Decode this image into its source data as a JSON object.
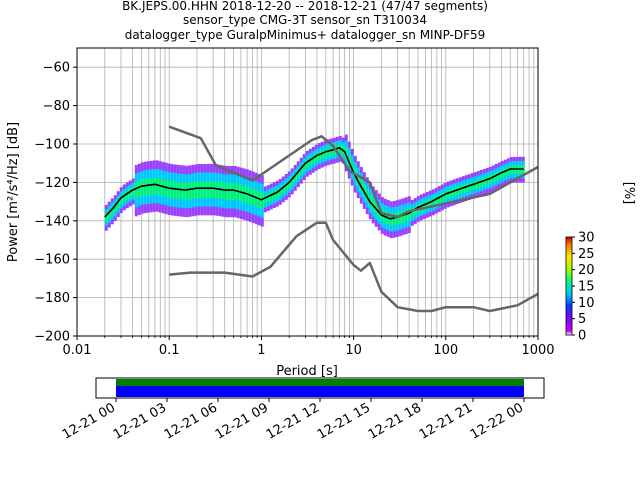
{
  "title_lines": [
    "BK.JEPS.00.HHN   2018-12-20 -- 2018-12-21  (47/47 segments)",
    "sensor_type CMG-3T sensor_sn T310034",
    "datalogger_type GuralpMinimus+ datalogger_sn MINP-DF59"
  ],
  "chart_data": {
    "type": "heatmap",
    "xlabel": "Period [s]",
    "ylabel": "Power [m²/s⁴/Hz] [dB]",
    "xscale": "log",
    "xlim": [
      0.01,
      1000
    ],
    "ylim": [
      -200,
      -50
    ],
    "xticks": [
      0.01,
      0.1,
      1,
      10,
      100,
      1000
    ],
    "xtick_labels": [
      "0.01",
      "0.1",
      "1",
      "10",
      "100",
      "1000"
    ],
    "yticks": [
      -200,
      -180,
      -160,
      -140,
      -120,
      -100,
      -80,
      -60
    ],
    "ytick_labels": [
      "−200",
      "−180",
      "−160",
      "−140",
      "−120",
      "−100",
      "−80",
      "−60"
    ],
    "grid": true,
    "colorbar": {
      "label": "[%]",
      "range": [
        0,
        30
      ],
      "ticks": [
        "0",
        "5",
        "10",
        "15",
        "20",
        "25",
        "30"
      ]
    },
    "series": [
      {
        "role": "mode",
        "x": [
          0.02,
          0.025,
          0.03,
          0.04,
          0.05,
          0.07,
          0.1,
          0.15,
          0.2,
          0.3,
          0.4,
          0.5,
          0.7,
          1,
          1.5,
          2,
          3,
          4,
          5,
          6,
          7,
          8,
          10,
          12,
          15,
          20,
          25,
          30,
          40,
          50,
          70,
          100,
          150,
          200,
          300,
          400,
          500,
          700
        ],
        "y": [
          -138,
          -133,
          -128,
          -124,
          -122,
          -121,
          -123,
          -124,
          -123,
          -123,
          -124,
          -124,
          -126,
          -129,
          -125,
          -120,
          -110,
          -106,
          -104,
          -103,
          -102,
          -104,
          -115,
          -122,
          -130,
          -137,
          -139,
          -138,
          -136,
          -133,
          -130,
          -126,
          -123,
          -121,
          -118,
          -115,
          -113,
          -113
        ]
      },
      {
        "role": "New High Noise Model",
        "x": [
          0.1,
          0.22,
          0.32,
          0.8,
          2,
          3.5,
          4.5,
          6,
          9,
          15,
          20,
          30,
          40,
          100,
          300,
          1000
        ],
        "y": [
          -91,
          -97,
          -111,
          -119,
          -106,
          -98,
          -96,
          -101,
          -114,
          -120,
          -136,
          -138,
          -135,
          -131,
          -126,
          -112
        ]
      },
      {
        "role": "New Low Noise Model",
        "x": [
          0.1,
          0.17,
          0.4,
          0.8,
          1.25,
          2.4,
          4,
          5,
          6,
          10,
          12,
          15,
          20,
          30,
          50,
          70,
          100,
          150,
          200,
          300,
          600,
          1000
        ],
        "y": [
          -168,
          -167,
          -167,
          -169,
          -164,
          -148,
          -141,
          -141,
          -150,
          -163,
          -166,
          -162,
          -177,
          -185,
          -187,
          -187,
          -185,
          -185,
          -185,
          -187,
          -184,
          -178
        ]
      }
    ]
  },
  "timeline": {
    "tick_labels": [
      "12-21 00",
      "12-21 03",
      "12-21 06",
      "12-21 09",
      "12-21 12",
      "12-21 15",
      "12-21 18",
      "12-21 21",
      "12-22 00"
    ],
    "coverage": [
      {
        "start_hour": 0,
        "end_hour": 24,
        "color": "#008000"
      },
      {
        "start_hour": 0,
        "end_hour": 24,
        "color": "#0000ff"
      }
    ]
  }
}
